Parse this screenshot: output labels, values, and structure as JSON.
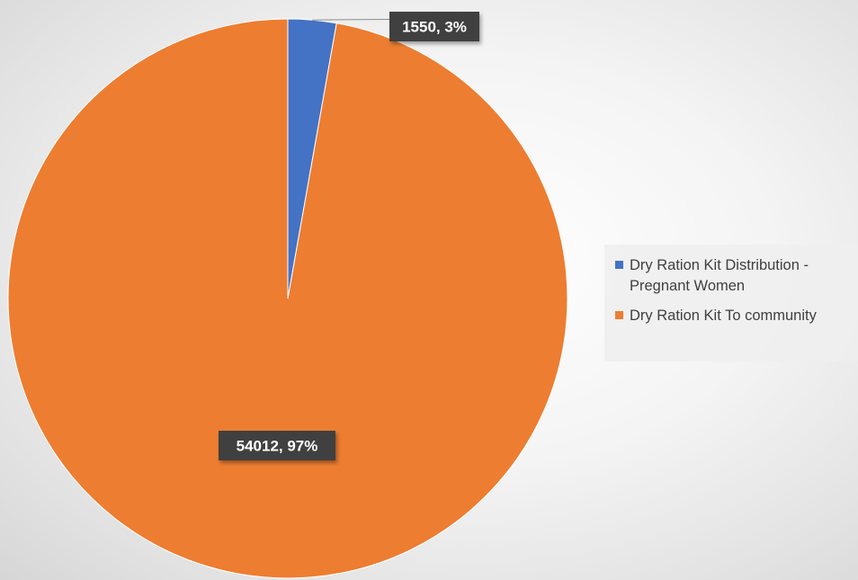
{
  "chart_data": {
    "type": "pie",
    "title": "",
    "slices": [
      {
        "name": "Dry Ration Kit Distribution - Pregnant Women",
        "value": 1550,
        "percent": 3,
        "label": "1550, 3%",
        "color": "#4472C4"
      },
      {
        "name": "Dry Ration Kit To community",
        "value": 54012,
        "percent": 97,
        "label": "54012, 97%",
        "color": "#ED7D31"
      }
    ],
    "start_angle_deg": 0,
    "direction": "clockwise",
    "data_label_style": "dark callout boxes with white bold text",
    "legend": {
      "placement": "right",
      "entries": [
        "Dry Ration Kit Distribution - Pregnant Women",
        "Dry Ration Kit To community"
      ]
    }
  }
}
